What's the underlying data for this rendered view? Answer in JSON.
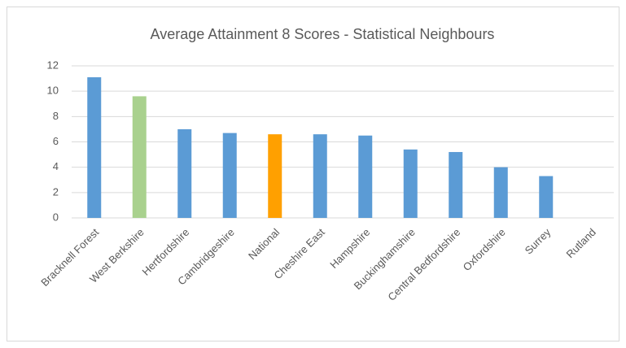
{
  "chart_data": {
    "type": "bar",
    "title": "Average Attainment 8 Scores - Statistical Neighbours",
    "categories": [
      "Bracknell Forest",
      "West Berkshire",
      "Hertfordshire",
      "Cambridgeshire",
      "National",
      "Cheshire East",
      "Hampshire",
      "Buckinghamshire",
      "Central Bedfordshire",
      "Oxfordshire",
      "Surrey",
      "Rutland"
    ],
    "values": [
      11.1,
      9.6,
      7.0,
      6.7,
      6.6,
      6.6,
      6.5,
      5.4,
      5.2,
      4.0,
      3.3,
      0
    ],
    "colors": [
      "#5b9bd5",
      "#a9d18e",
      "#5b9bd5",
      "#5b9bd5",
      "#ffa000",
      "#5b9bd5",
      "#5b9bd5",
      "#5b9bd5",
      "#5b9bd5",
      "#5b9bd5",
      "#5b9bd5",
      "#5b9bd5"
    ],
    "ylim": [
      0,
      12
    ],
    "yticks": [
      0,
      2,
      4,
      6,
      8,
      10,
      12
    ],
    "grid": true
  }
}
